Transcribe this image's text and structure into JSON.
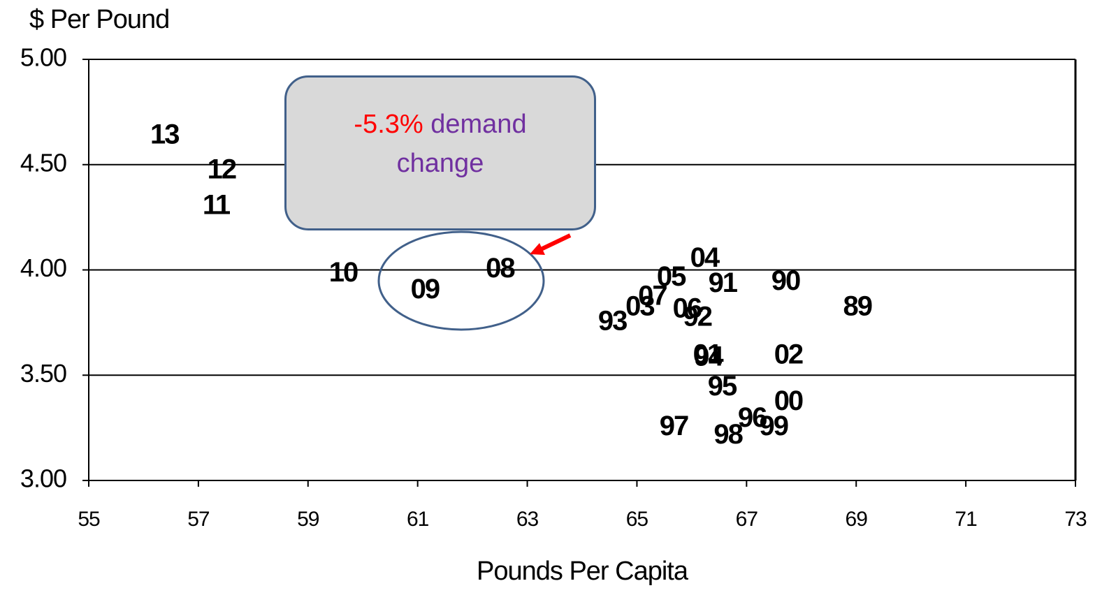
{
  "chart_data": {
    "type": "scatter",
    "y_axis_label": "$ Per Pound",
    "x_axis_label": "Pounds Per Capita",
    "xlim": [
      55,
      73
    ],
    "xticks": [
      55,
      57,
      59,
      61,
      63,
      65,
      67,
      69,
      71,
      73
    ],
    "ylim": [
      3,
      5
    ],
    "yticks": [
      {
        "value": 3,
        "label": "3.00"
      },
      {
        "value": 3.5,
        "label": "3.50"
      },
      {
        "value": 4,
        "label": "4.00"
      },
      {
        "value": 4.5,
        "label": "4.50"
      },
      {
        "value": 5,
        "label": "5.00"
      }
    ],
    "grid": true,
    "color": "#000000",
    "point_labels": [
      "13",
      "12",
      "11",
      "10",
      "09",
      "08",
      "04",
      "05",
      "91",
      "90",
      "89",
      "07",
      "03",
      "06",
      "92",
      "93",
      "01",
      "94",
      "02",
      "95",
      "00",
      "96",
      "99",
      "97",
      "98"
    ],
    "x": [
      56.38,
      57.42,
      57.32,
      59.64,
      61.13,
      62.5,
      66.23,
      65.62,
      66.56,
      67.71,
      69.02,
      65.28,
      65.05,
      65.91,
      66.1,
      64.55,
      66.28,
      66.3,
      67.76,
      66.55,
      67.76,
      67.1,
      67.49,
      65.67,
      66.66
    ],
    "values": [
      4.635,
      4.47,
      4.3,
      3.98,
      3.9,
      4.0,
      4.05,
      3.96,
      3.93,
      3.94,
      3.82,
      3.87,
      3.82,
      3.81,
      3.77,
      3.75,
      3.59,
      3.58,
      3.59,
      3.44,
      3.37,
      3.29,
      3.25,
      3.25,
      3.21
    ],
    "annotation_parts": [
      {
        "text": "-5.3%",
        "color": "#ff0000"
      },
      {
        "text": "demand change",
        "color": "#7030a0"
      }
    ]
  }
}
